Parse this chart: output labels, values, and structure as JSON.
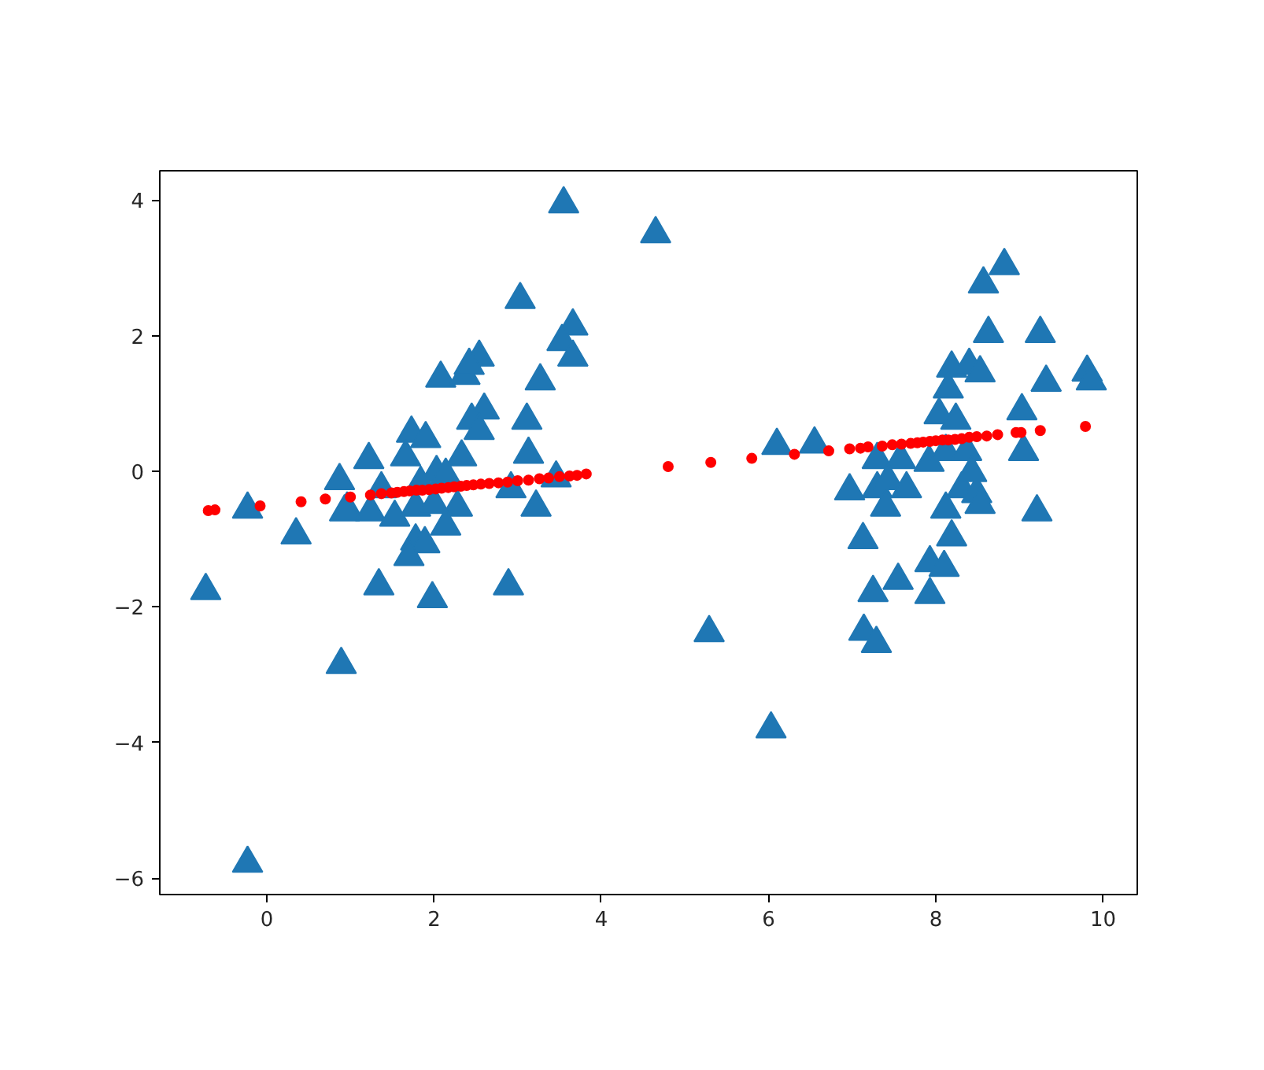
{
  "chart_data": {
    "type": "scatter",
    "xlim": [
      -1.28,
      10.41
    ],
    "ylim": [
      -6.24,
      4.43
    ],
    "xticks": [
      0,
      2,
      4,
      6,
      8,
      10
    ],
    "yticks": [
      {
        "value": -6,
        "label": "−6"
      },
      {
        "value": -4,
        "label": "−4"
      },
      {
        "value": -2,
        "label": "−2"
      },
      0,
      2,
      4
    ],
    "grid": false,
    "series": [
      {
        "marker": "triangle",
        "color": "#1f77b4",
        "x": [
          3.55,
          3.03,
          3.66,
          3.53,
          3.66,
          3.27,
          2.08,
          2.37,
          2.54,
          2.42,
          2.6,
          2.45,
          2.54,
          3.11,
          1.73,
          1.9,
          1.22,
          1.66,
          2.33,
          3.13,
          0.87,
          1.37,
          2.03,
          2.14,
          1.84,
          3.46,
          2.92,
          -0.23,
          0.96,
          2.28,
          3.22,
          0.93,
          1.24,
          1.53,
          1.78,
          2.0,
          0.35,
          2.14,
          1.78,
          1.89,
          1.7,
          -0.73,
          1.34,
          1.98,
          2.89,
          0.89,
          -0.23,
          4.65,
          8.82,
          8.57,
          8.63,
          9.25,
          8.19,
          8.4,
          8.53,
          9.32,
          9.81,
          9.86,
          8.15,
          8.04,
          8.24,
          9.03,
          6.1,
          6.55,
          7.3,
          7.58,
          9.05,
          7.92,
          8.12,
          8.37,
          6.97,
          7.3,
          7.43,
          7.65,
          8.31,
          8.49,
          8.43,
          7.4,
          8.12,
          9.21,
          8.53,
          7.13,
          8.19,
          7.93,
          8.1,
          7.55,
          7.25,
          7.93,
          5.29,
          7.14,
          7.29,
          6.03
        ],
        "values": [
          3.94,
          2.53,
          2.14,
          1.91,
          1.68,
          1.33,
          1.37,
          1.41,
          1.68,
          1.56,
          0.9,
          0.75,
          0.6,
          0.75,
          0.56,
          0.48,
          0.17,
          0.21,
          0.21,
          0.25,
          -0.14,
          -0.26,
          -0.02,
          -0.06,
          -0.18,
          -0.1,
          -0.26,
          -0.56,
          -0.56,
          -0.53,
          -0.53,
          -0.6,
          -0.6,
          -0.68,
          -0.53,
          -0.49,
          -0.94,
          -0.81,
          -1.03,
          -1.07,
          -1.26,
          -1.76,
          -1.69,
          -1.88,
          -1.69,
          -2.85,
          -5.78,
          3.5,
          3.03,
          2.76,
          2.03,
          2.03,
          1.52,
          1.56,
          1.45,
          1.31,
          1.46,
          1.33,
          1.21,
          0.83,
          0.75,
          0.89,
          0.38,
          0.4,
          0.17,
          0.17,
          0.29,
          0.13,
          0.29,
          0.29,
          -0.29,
          -0.26,
          -0.14,
          -0.26,
          -0.26,
          -0.33,
          -0.02,
          -0.53,
          -0.56,
          -0.6,
          -0.49,
          -1.01,
          -0.97,
          -1.35,
          -1.42,
          -1.61,
          -1.79,
          -1.82,
          -2.38,
          -2.36,
          -2.54,
          -3.8
        ]
      },
      {
        "marker": "circle",
        "color": "#ff0000",
        "x": [
          -0.7,
          -0.62,
          -0.08,
          0.41,
          0.7,
          1.0,
          1.24,
          1.37,
          1.49,
          1.56,
          1.64,
          1.71,
          1.79,
          1.86,
          1.94,
          2.02,
          2.09,
          2.17,
          2.24,
          2.32,
          2.39,
          2.47,
          2.56,
          2.66,
          2.77,
          2.88,
          3.0,
          3.13,
          3.26,
          3.37,
          3.5,
          3.62,
          3.71,
          3.82,
          4.8,
          5.31,
          5.8,
          6.31,
          6.72,
          6.97,
          7.1,
          7.19,
          7.36,
          7.48,
          7.59,
          7.7,
          7.78,
          7.85,
          7.93,
          8.0,
          8.08,
          8.15,
          8.23,
          8.31,
          8.4,
          8.49,
          8.61,
          8.74,
          8.96,
          9.02,
          9.25,
          9.79
        ],
        "values": [
          -0.58,
          -0.57,
          -0.51,
          -0.45,
          -0.41,
          -0.38,
          -0.35,
          -0.33,
          -0.32,
          -0.31,
          -0.3,
          -0.29,
          -0.28,
          -0.28,
          -0.27,
          -0.26,
          -0.25,
          -0.24,
          -0.23,
          -0.22,
          -0.21,
          -0.2,
          -0.19,
          -0.18,
          -0.17,
          -0.16,
          -0.14,
          -0.13,
          -0.11,
          -0.1,
          -0.08,
          -0.07,
          -0.06,
          -0.04,
          0.07,
          0.13,
          0.19,
          0.25,
          0.3,
          0.33,
          0.34,
          0.36,
          0.37,
          0.39,
          0.4,
          0.41,
          0.42,
          0.43,
          0.44,
          0.45,
          0.46,
          0.46,
          0.47,
          0.48,
          0.5,
          0.51,
          0.52,
          0.54,
          0.57,
          0.57,
          0.6,
          0.66
        ]
      }
    ]
  }
}
